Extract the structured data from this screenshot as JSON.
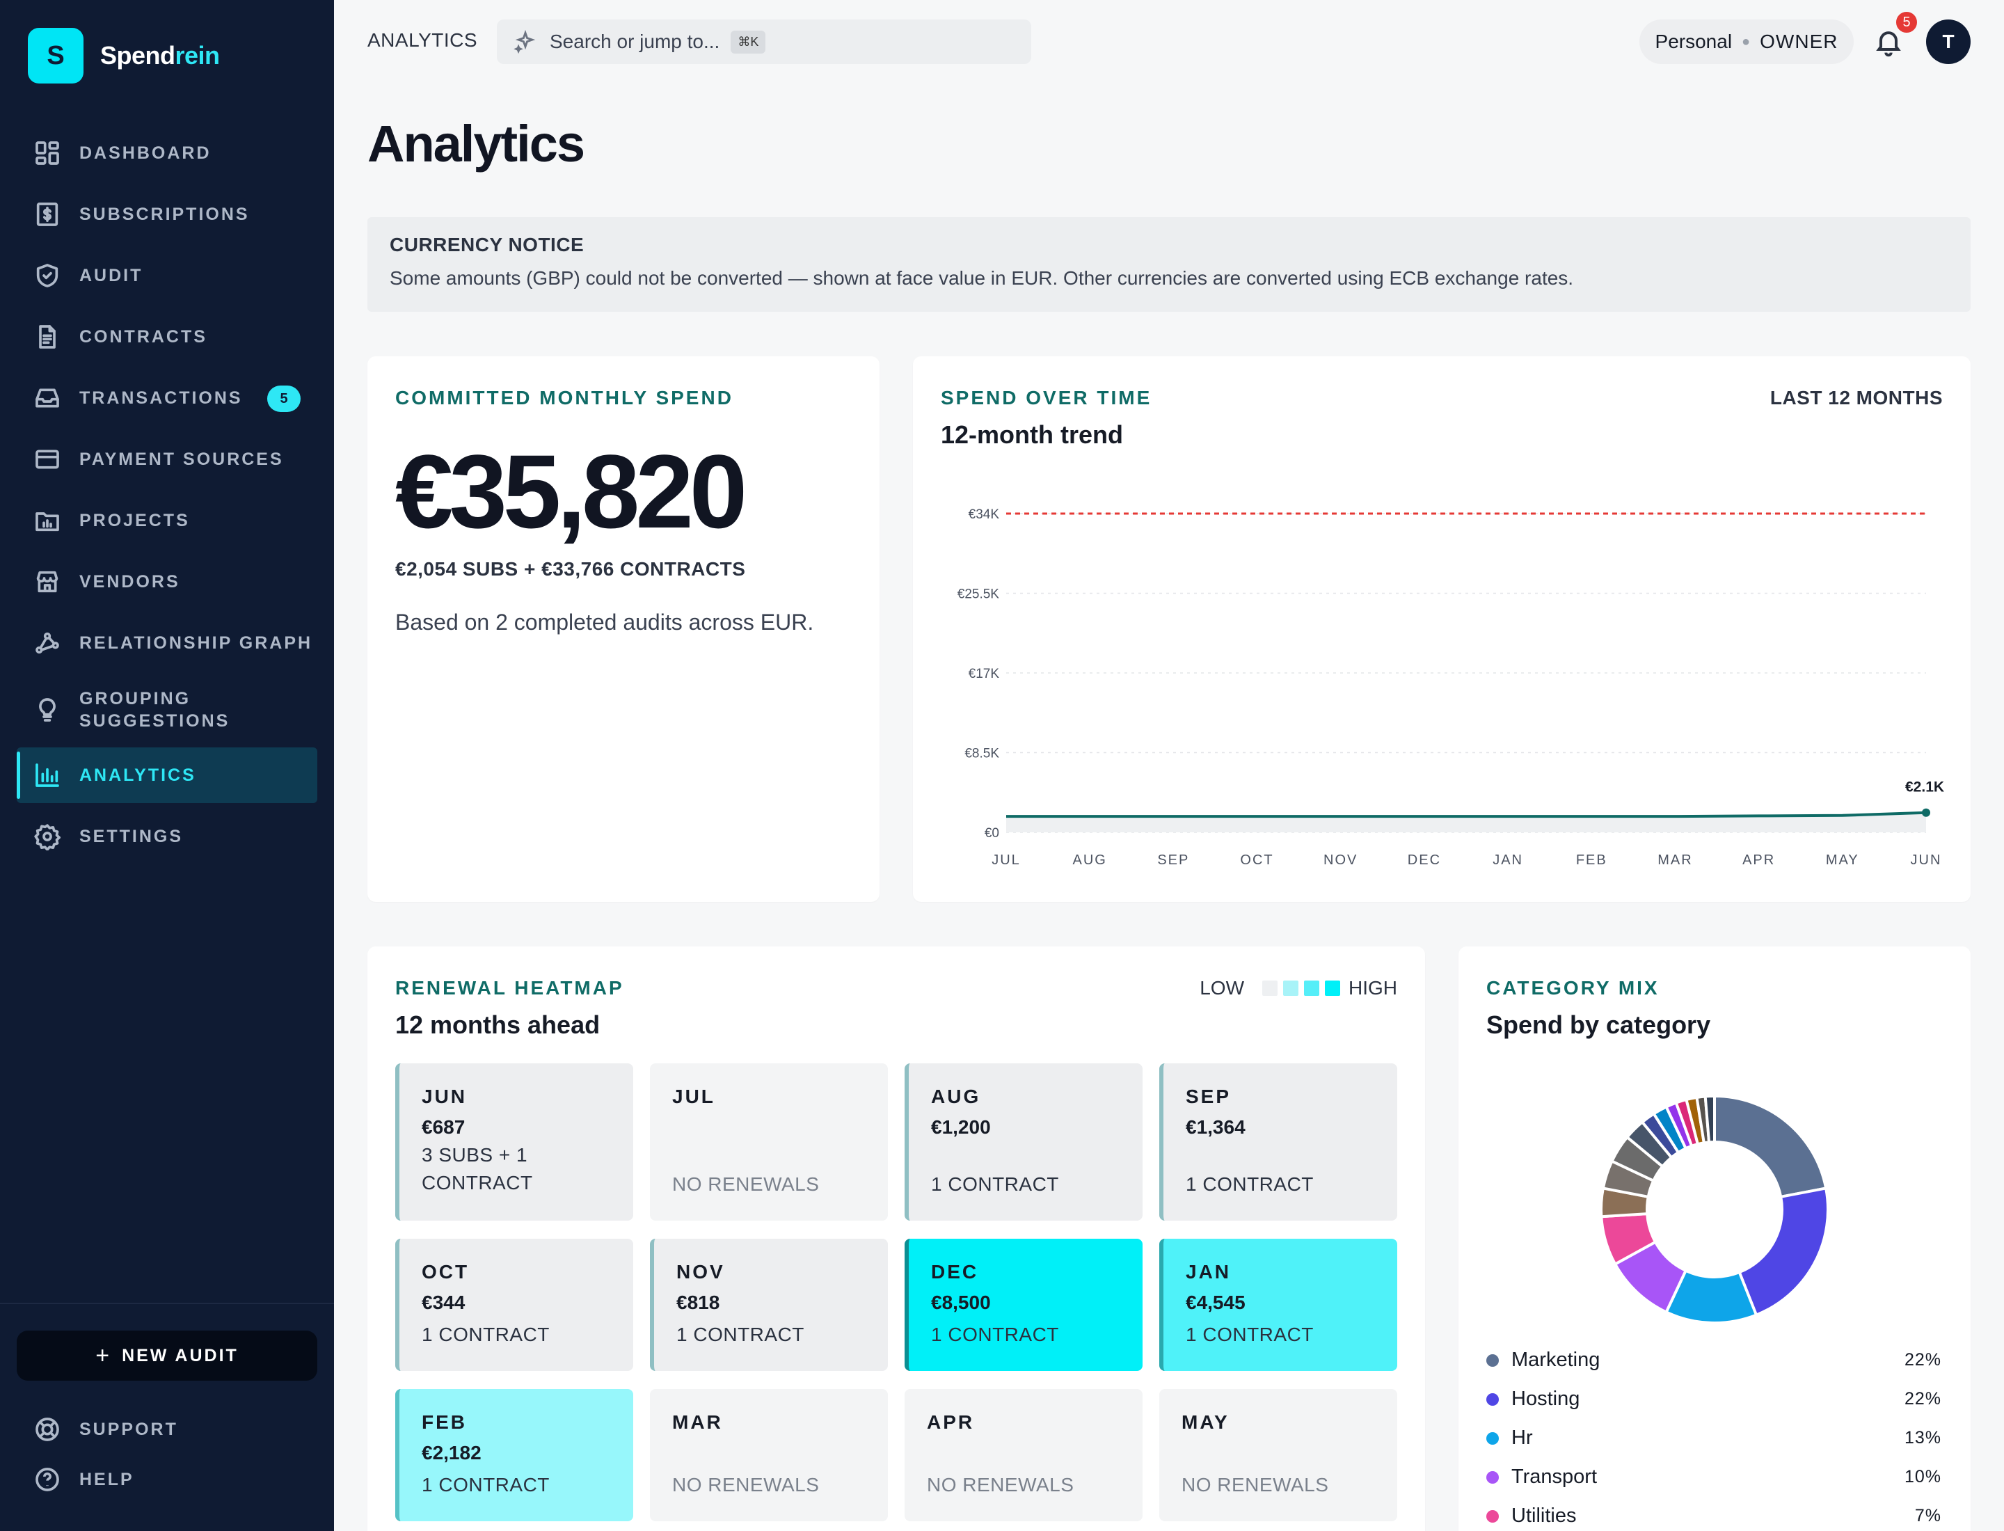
{
  "brand": {
    "logo_letter": "S",
    "name_a": "Spend",
    "name_b": "rein"
  },
  "sidebar": {
    "items": [
      {
        "label": "DASHBOARD",
        "icon": "grid-icon"
      },
      {
        "label": "SUBSCRIPTIONS",
        "icon": "receipt-icon"
      },
      {
        "label": "AUDIT",
        "icon": "shield-check-icon"
      },
      {
        "label": "CONTRACTS",
        "icon": "document-icon"
      },
      {
        "label": "TRANSACTIONS",
        "icon": "inbox-icon",
        "badge": "5"
      },
      {
        "label": "PAYMENT SOURCES",
        "icon": "credit-card-icon"
      },
      {
        "label": "PROJECTS",
        "icon": "folder-chart-icon"
      },
      {
        "label": "VENDORS",
        "icon": "store-icon"
      },
      {
        "label": "RELATIONSHIP GRAPH",
        "icon": "graph-icon"
      },
      {
        "label": "GROUPING\nSUGGESTIONS",
        "icon": "lightbulb-icon"
      },
      {
        "label": "ANALYTICS",
        "icon": "bar-chart-icon",
        "active": true
      },
      {
        "label": "SETTINGS",
        "icon": "gear-icon"
      }
    ],
    "new_audit": "NEW AUDIT",
    "support": "SUPPORT",
    "help": "HELP"
  },
  "topbar": {
    "breadcrumb": "ANALYTICS",
    "search_placeholder": "Search or jump to...",
    "shortcut": "⌘K",
    "workspace": "Personal",
    "role": "OWNER",
    "notifications": "5",
    "avatar": "T"
  },
  "page": {
    "title": "Analytics"
  },
  "notice": {
    "heading": "CURRENCY NOTICE",
    "text": "Some amounts (GBP) could not be converted — shown at face value in EUR. Other currencies are converted using ECB exchange rates."
  },
  "committed": {
    "eyebrow": "COMMITTED MONTHLY SPEND",
    "value": "€35,820",
    "breakdown": "€2,054 SUBS + €33,766 CONTRACTS",
    "based_on": "Based on 2 completed audits across EUR."
  },
  "spend_over_time": {
    "eyebrow": "SPEND OVER TIME",
    "subtitle": "12-month trend",
    "range": "LAST 12 MONTHS"
  },
  "chart_data": {
    "type": "line",
    "title": "12-month trend",
    "x": [
      "JUL",
      "AUG",
      "SEP",
      "OCT",
      "NOV",
      "DEC",
      "JAN",
      "FEB",
      "MAR",
      "APR",
      "MAY",
      "JUN"
    ],
    "series": [
      {
        "values": [
          1700,
          1700,
          1700,
          1700,
          1700,
          1700,
          1700,
          1700,
          1700,
          1750,
          1800,
          2100
        ]
      }
    ],
    "threshold": 34000,
    "y_ticks": [
      "€0",
      "€8.5K",
      "€17K",
      "€25.5K",
      "€34K"
    ],
    "ylim": [
      0,
      34000
    ],
    "end_label": "€2.1K",
    "line_color": "#0f6b66",
    "threshold_color": "#e53935",
    "grid": true
  },
  "heatmap": {
    "eyebrow": "RENEWAL HEATMAP",
    "subtitle": "12 months ahead",
    "legend_low": "LOW",
    "legend_high": "HIGH",
    "legend_colors": [
      "#eef0f2",
      "#a8f3f8",
      "#55eef8",
      "#00f0f8"
    ],
    "cells": [
      {
        "month": "JUN",
        "amount": "€687",
        "detail": "3 SUBS + 1\nCONTRACT",
        "color": "#edeef0",
        "bar": true
      },
      {
        "month": "JUL",
        "amount": "",
        "detail": "NO RENEWALS",
        "color": "#f3f4f5",
        "bar": false
      },
      {
        "month": "AUG",
        "amount": "€1,200",
        "detail": "1 CONTRACT",
        "color": "#edeef0",
        "bar": true
      },
      {
        "month": "SEP",
        "amount": "€1,364",
        "detail": "1 CONTRACT",
        "color": "#edeef0",
        "bar": true
      },
      {
        "month": "OCT",
        "amount": "€344",
        "detail": "1 CONTRACT",
        "color": "#edeef0",
        "bar": true
      },
      {
        "month": "NOV",
        "amount": "€818",
        "detail": "1 CONTRACT",
        "color": "#edeef0",
        "bar": true
      },
      {
        "month": "DEC",
        "amount": "€8,500",
        "detail": "1 CONTRACT",
        "color": "#00f0f8",
        "bar": true
      },
      {
        "month": "JAN",
        "amount": "€4,545",
        "detail": "1 CONTRACT",
        "color": "#4ff2f9",
        "bar": true
      },
      {
        "month": "FEB",
        "amount": "€2,182",
        "detail": "1 CONTRACT",
        "color": "#97f7fb",
        "bar": true
      },
      {
        "month": "MAR",
        "amount": "",
        "detail": "NO RENEWALS",
        "color": "#f3f4f5",
        "bar": false
      },
      {
        "month": "APR",
        "amount": "",
        "detail": "NO RENEWALS",
        "color": "#f3f4f5",
        "bar": false
      },
      {
        "month": "MAY",
        "amount": "",
        "detail": "NO RENEWALS",
        "color": "#f3f4f5",
        "bar": false
      }
    ]
  },
  "category_mix": {
    "eyebrow": "CATEGORY MIX",
    "subtitle": "Spend by category",
    "slices": [
      {
        "name": "Marketing",
        "pct": 22,
        "label": "22%",
        "color": "#5b7092"
      },
      {
        "name": "Hosting",
        "pct": 22,
        "label": "22%",
        "color": "#4f46e5"
      },
      {
        "name": "Hr",
        "pct": 13,
        "label": "13%",
        "color": "#0ea5e9"
      },
      {
        "name": "Transport",
        "pct": 10,
        "label": "10%",
        "color": "#a855f7"
      },
      {
        "name": "Utilities",
        "pct": 7,
        "label": "7%",
        "color": "#ec4899"
      },
      {
        "name": "",
        "pct": 4,
        "color": "#8b6f56"
      },
      {
        "name": "",
        "pct": 4,
        "color": "#78716c"
      },
      {
        "name": "",
        "pct": 4,
        "color": "#6b6b6b"
      },
      {
        "name": "",
        "pct": 3,
        "color": "#475569"
      },
      {
        "name": "",
        "pct": 2,
        "color": "#3b4a9a"
      },
      {
        "name": "",
        "pct": 2,
        "color": "#0284c7"
      },
      {
        "name": "",
        "pct": 1.5,
        "color": "#9333ea"
      },
      {
        "name": "",
        "pct": 1.5,
        "color": "#db2777"
      },
      {
        "name": "",
        "pct": 1.5,
        "color": "#a16207"
      },
      {
        "name": "",
        "pct": 1.2,
        "color": "#57534e"
      },
      {
        "name": "",
        "pct": 1.3,
        "color": "#334155"
      }
    ]
  }
}
